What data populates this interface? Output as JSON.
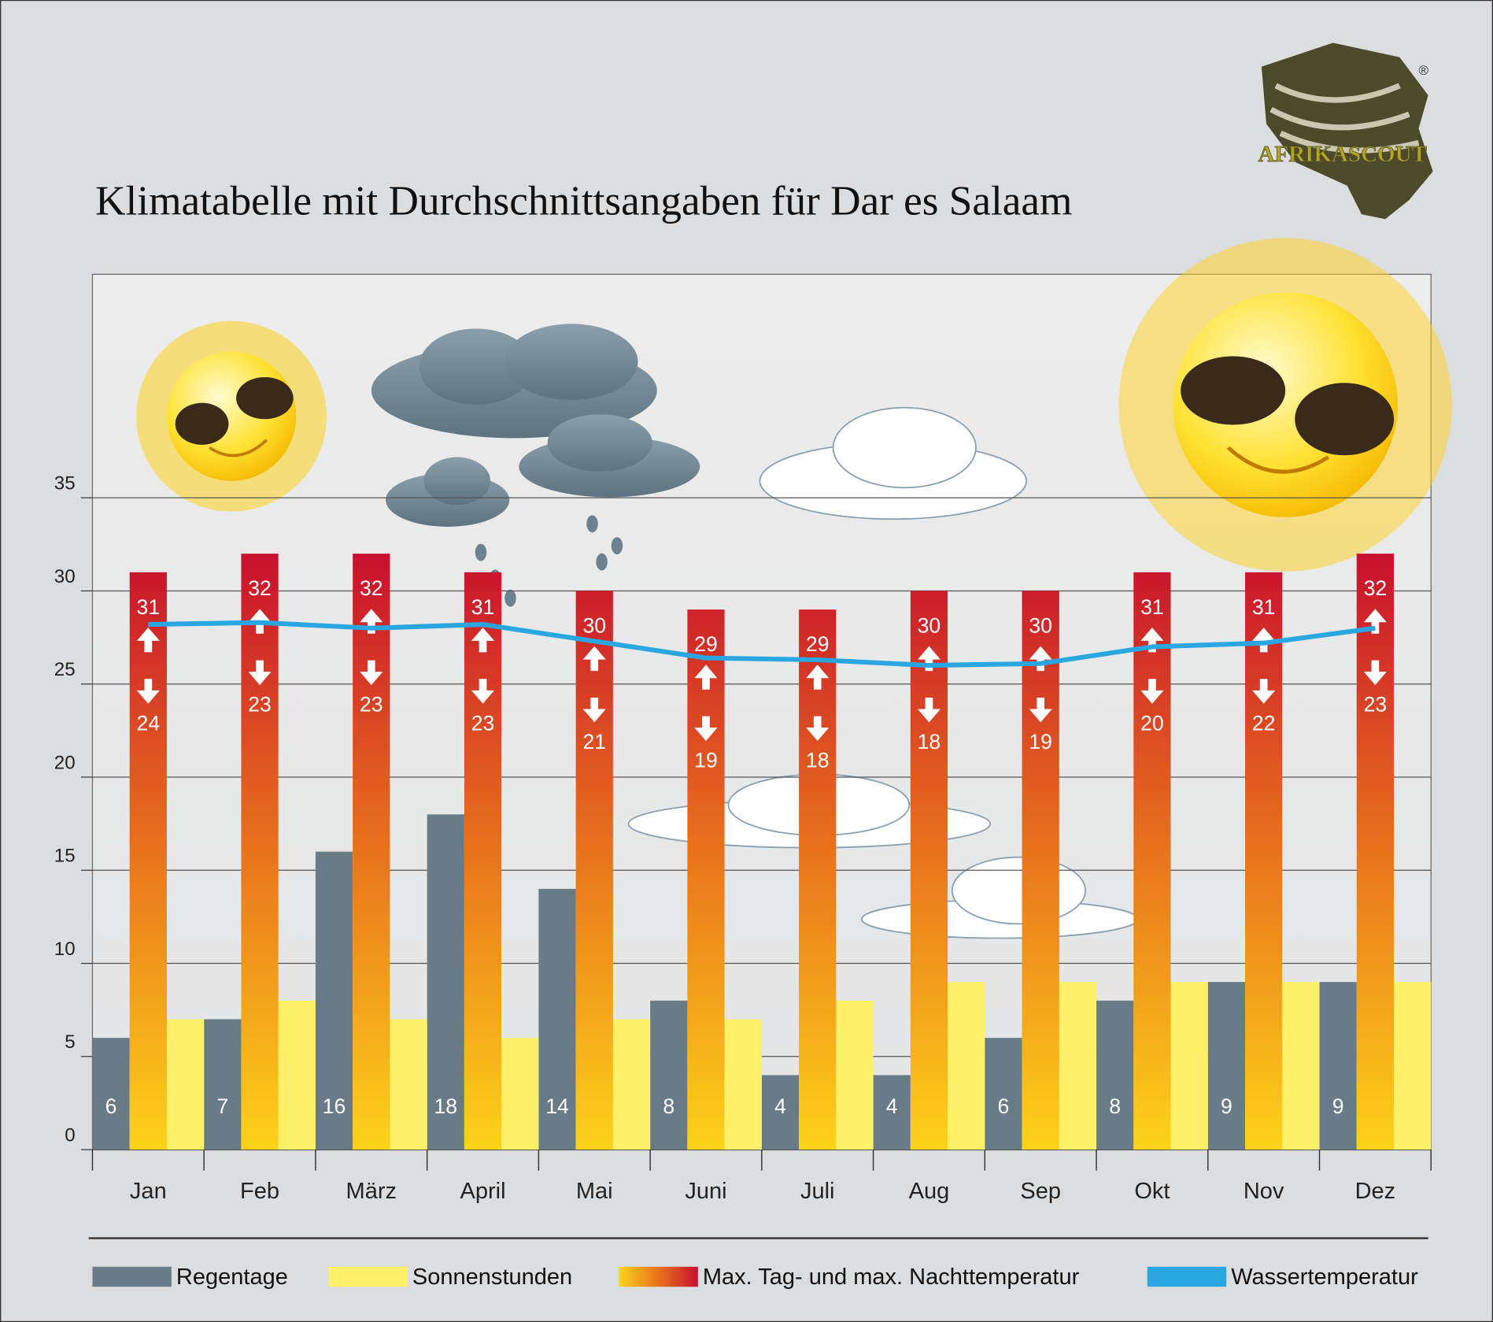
{
  "logo": {
    "text": "AFRIKASCOUT",
    "mark": "®"
  },
  "chart_data": {
    "type": "bar",
    "title": "Klimatabelle mit Durchschnittsangaben für Dar es Salaam",
    "categories": [
      "Jan",
      "Feb",
      "März",
      "April",
      "Mai",
      "Juni",
      "Juli",
      "Aug",
      "Sep",
      "Okt",
      "Nov",
      "Dez"
    ],
    "ylim": [
      0,
      47
    ],
    "yticks": [
      0,
      5,
      10,
      15,
      20,
      25,
      30,
      35
    ],
    "grid": true,
    "series": [
      {
        "name": "Regentage",
        "color": "#687b86",
        "values": [
          6,
          7,
          16,
          18,
          14,
          8,
          4,
          4,
          6,
          8,
          9,
          9
        ]
      },
      {
        "name": "Sonnenstunden",
        "color": "#fff06a",
        "values": [
          7,
          8,
          7,
          6,
          7,
          7,
          8,
          9,
          9,
          9,
          9,
          9
        ]
      },
      {
        "name": "Max. Tag- und max. Nachttemperatur",
        "colors": [
          "#fdd31a",
          "#e8731c",
          "#c8102e"
        ],
        "values": [
          31,
          32,
          32,
          31,
          30,
          29,
          29,
          30,
          30,
          31,
          31,
          32
        ],
        "night_values": [
          24,
          23,
          23,
          23,
          21,
          19,
          18,
          18,
          19,
          20,
          22,
          23
        ]
      },
      {
        "name": "Wassertemperatur",
        "type": "line",
        "color": "#2aa6e0",
        "values": [
          28.2,
          28.3,
          28.0,
          28.2,
          27.3,
          26.4,
          26.3,
          26.0,
          26.1,
          27.0,
          27.2,
          28.0
        ]
      }
    ]
  }
}
